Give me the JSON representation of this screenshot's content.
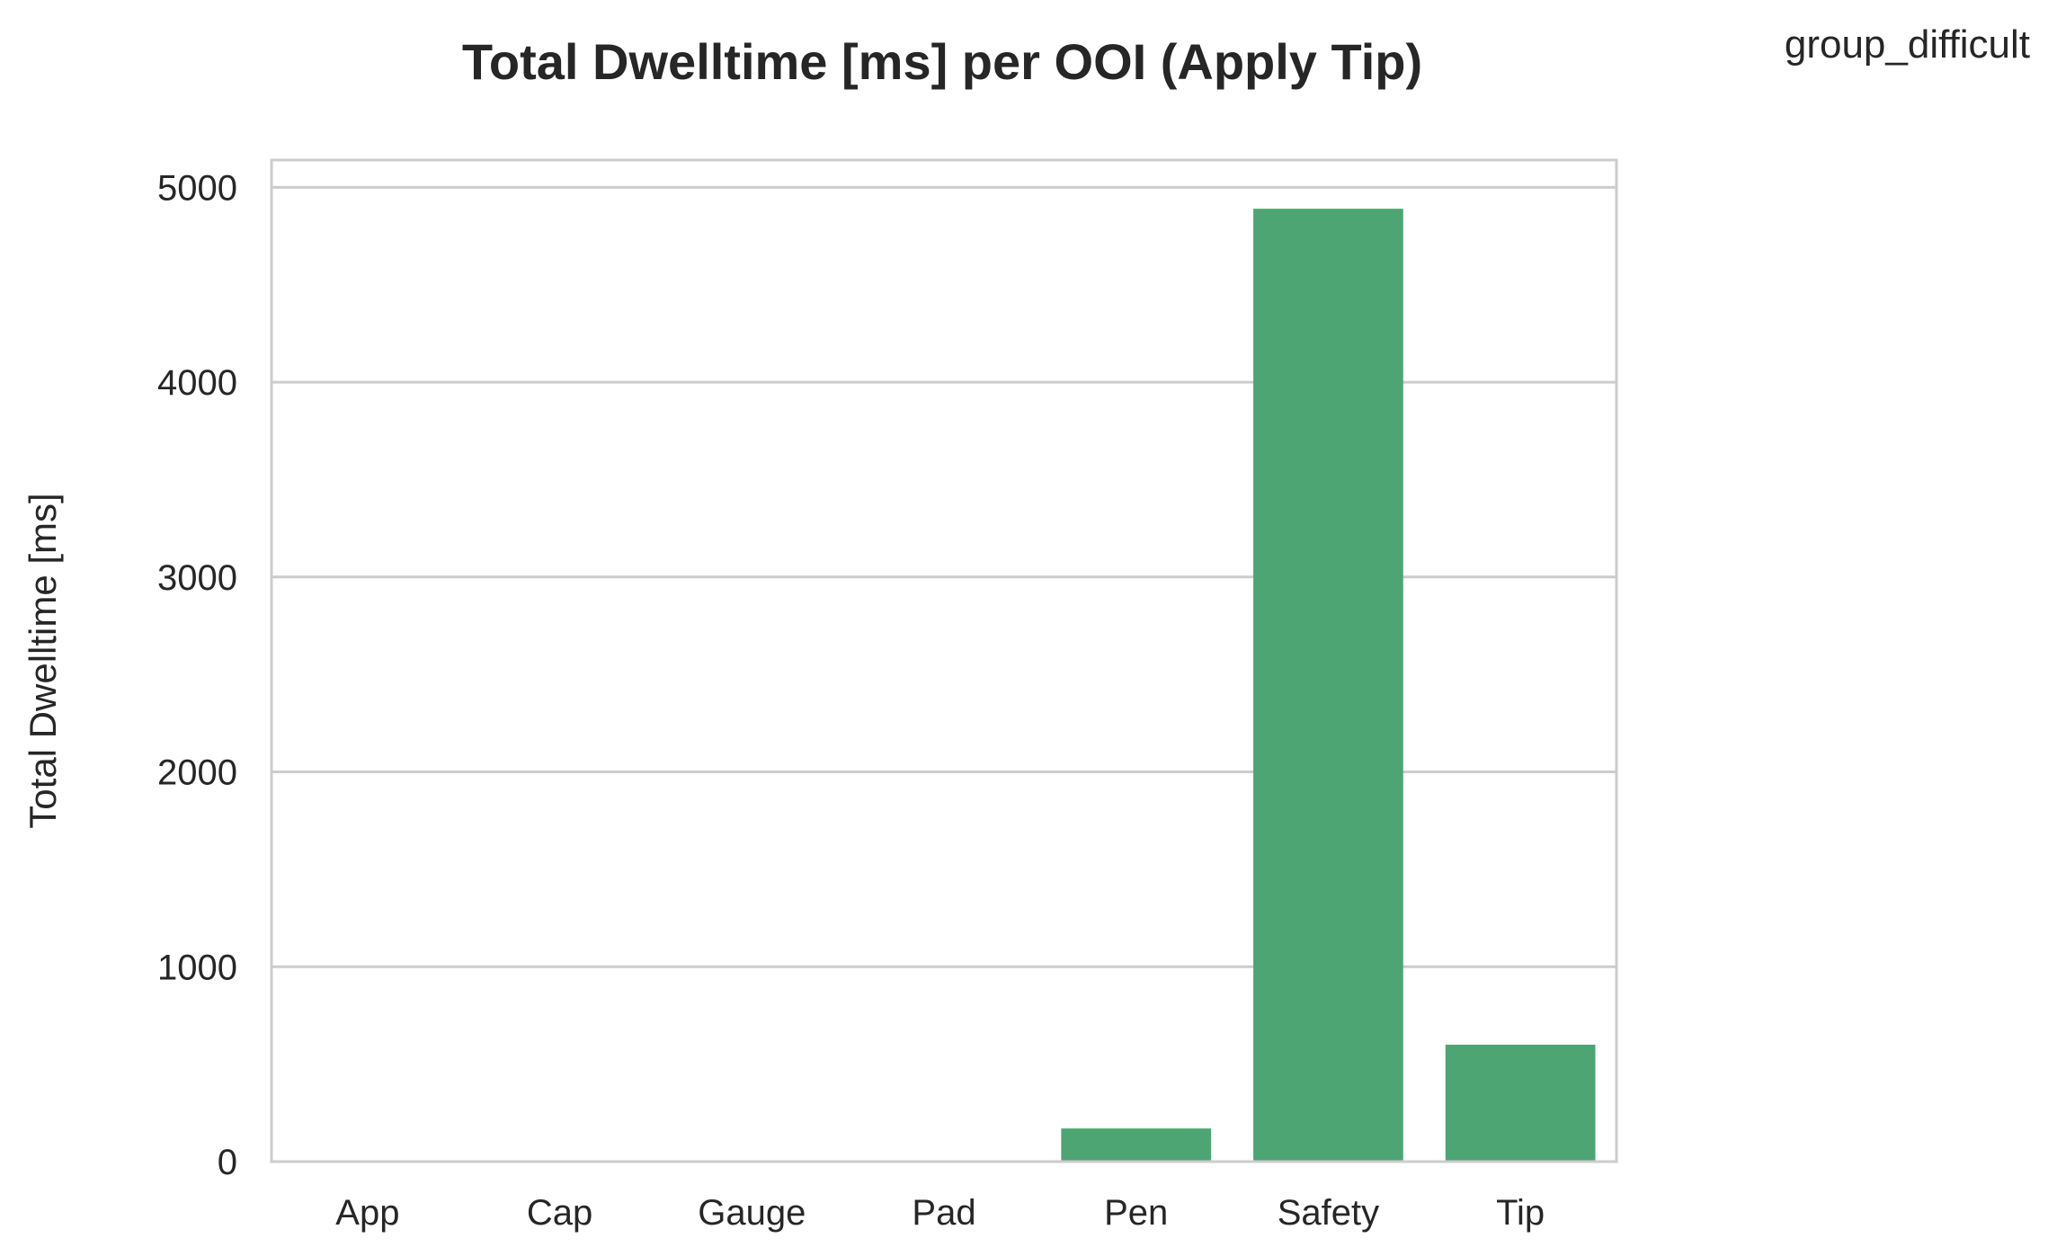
{
  "chart_data": {
    "type": "bar",
    "title": "Total Dwelltime [ms] per OOI (Apply Tip)",
    "xlabel": "",
    "ylabel": "Total Dwelltime [ms]",
    "categories": [
      "App",
      "Cap",
      "Gauge",
      "Pad",
      "Pen",
      "Safety",
      "Tip"
    ],
    "values": [
      0,
      0,
      0,
      0,
      170,
      4890,
      600
    ],
    "ylim": [
      0,
      5140
    ],
    "yticks": [
      0,
      1000,
      2000,
      3000,
      4000,
      5000
    ],
    "ytick_labels": [
      "0",
      "1000",
      "2000",
      "3000",
      "4000",
      "5000"
    ],
    "grid": "horizontal",
    "legend": {
      "title": "group_difficult",
      "placement": "upper-right-outside"
    },
    "colors": {
      "bar": "#4ca573",
      "grid": "#cccccc",
      "frame": "#cccccc",
      "text": "#262626"
    }
  }
}
